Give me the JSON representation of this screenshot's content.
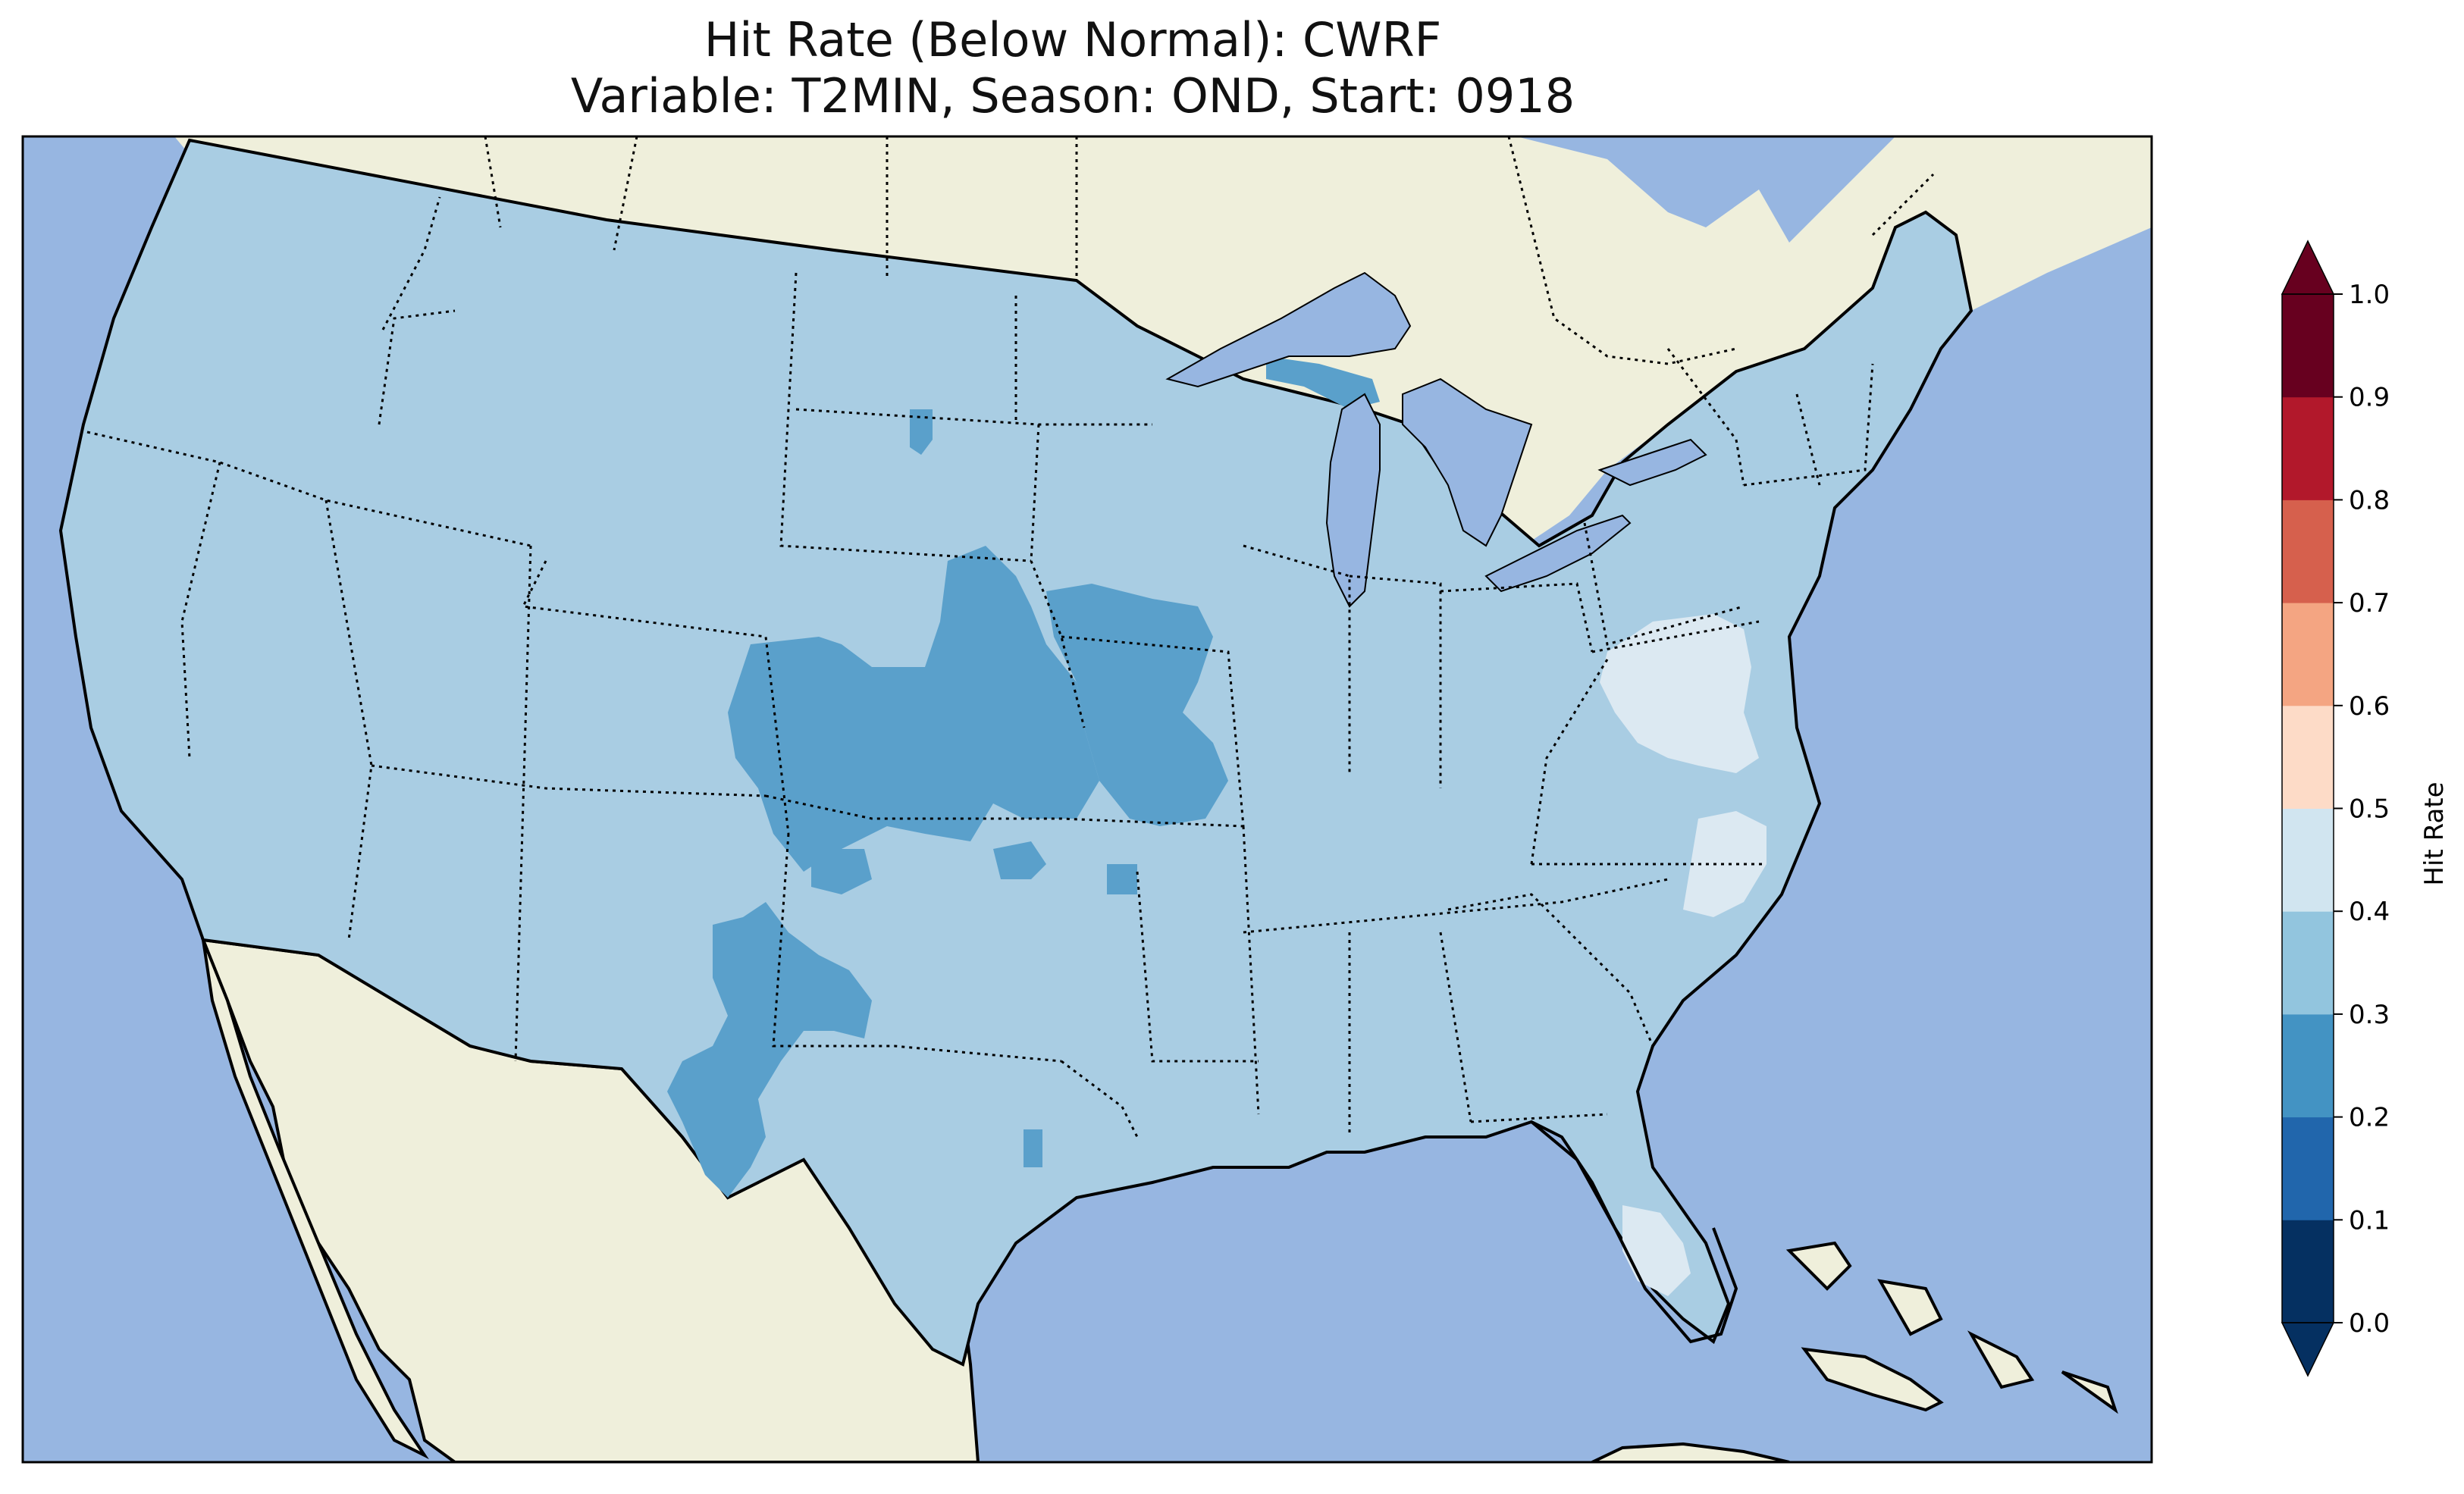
{
  "figure": {
    "title_line1": "Hit Rate (Below Normal): CWRF",
    "title_line2": "Variable: T2MIN, Season: OND, Start: 0918"
  },
  "map": {
    "region": "Contiguous United States",
    "field": "Hit Rate (Below Normal)",
    "colors": {
      "ocean": "#97b6e1",
      "land": "#efefdb",
      "coastline": "#000000",
      "state_borders": "#000000"
    },
    "regions": [
      {
        "name": "central-plains-blob",
        "bin": "0.2-0.3"
      },
      {
        "name": "iowa-missouri-blob",
        "bin": "0.2-0.3"
      },
      {
        "name": "west-texas-blob",
        "bin": "0.2-0.3"
      },
      {
        "name": "upper-michigan-patch",
        "bin": "0.2-0.3"
      },
      {
        "name": "south-dakota-patch",
        "bin": "0.2-0.3"
      },
      {
        "name": "virginia-patch",
        "bin": "0.4-0.5"
      },
      {
        "name": "north-carolina-patch",
        "bin": "0.4-0.5"
      },
      {
        "name": "florida-patch",
        "bin": "0.4-0.5"
      },
      {
        "name": "conus-background",
        "bin": "0.3-0.4"
      }
    ]
  },
  "colorbar": {
    "label": "Hit Rate",
    "ticks": [
      "0.0",
      "0.1",
      "0.2",
      "0.3",
      "0.4",
      "0.5",
      "0.6",
      "0.7",
      "0.8",
      "0.9",
      "1.0"
    ],
    "bins": [
      {
        "range": "0.0-0.1",
        "color": "#053061"
      },
      {
        "range": "0.1-0.2",
        "color": "#2166ac"
      },
      {
        "range": "0.2-0.3",
        "color": "#4393c3"
      },
      {
        "range": "0.3-0.4",
        "color": "#92c5de"
      },
      {
        "range": "0.4-0.5",
        "color": "#d1e5f0"
      },
      {
        "range": "0.5-0.6",
        "color": "#fddbc7"
      },
      {
        "range": "0.6-0.7",
        "color": "#f4a582"
      },
      {
        "range": "0.7-0.8",
        "color": "#d6604d"
      },
      {
        "range": "0.8-0.9",
        "color": "#b2182b"
      },
      {
        "range": "0.9-1.0",
        "color": "#67001f"
      }
    ],
    "extend": "both"
  }
}
